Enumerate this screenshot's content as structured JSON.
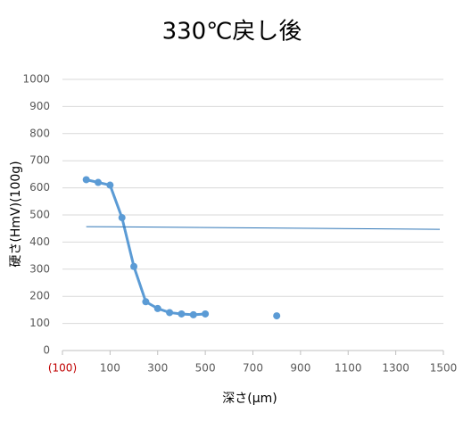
{
  "chart_data": {
    "type": "scatter",
    "title": "330℃戻し後",
    "xlabel": "深さ(μm)",
    "ylabel": "硬さ(HmV)(100g)",
    "xlim": [
      -100,
      1500
    ],
    "xticks": [
      {
        "value": -100,
        "label": "(100)",
        "color": "#c00000"
      },
      100,
      300,
      500,
      700,
      900,
      1100,
      1300,
      1500
    ],
    "ylim": [
      0,
      1000
    ],
    "yticks": [
      0,
      100,
      200,
      300,
      400,
      500,
      600,
      700,
      800,
      900,
      1000
    ],
    "grid": true,
    "series": [
      {
        "color": "#5b9bd5",
        "line": true,
        "line_width": 3,
        "markers": true,
        "x": [
          0,
          50,
          100,
          150,
          200,
          250,
          300,
          350,
          400,
          450,
          500
        ],
        "values": [
          630,
          620,
          610,
          490,
          310,
          180,
          155,
          140,
          135,
          132,
          135
        ]
      },
      {
        "color": "#5b9bd5",
        "line": false,
        "markers": true,
        "x": [
          800
        ],
        "values": [
          128
        ]
      },
      {
        "color": "#2e75b6",
        "line": true,
        "line_width": 1,
        "markers": false,
        "x": [
          0,
          1485
        ],
        "values": [
          457,
          447
        ]
      }
    ]
  }
}
